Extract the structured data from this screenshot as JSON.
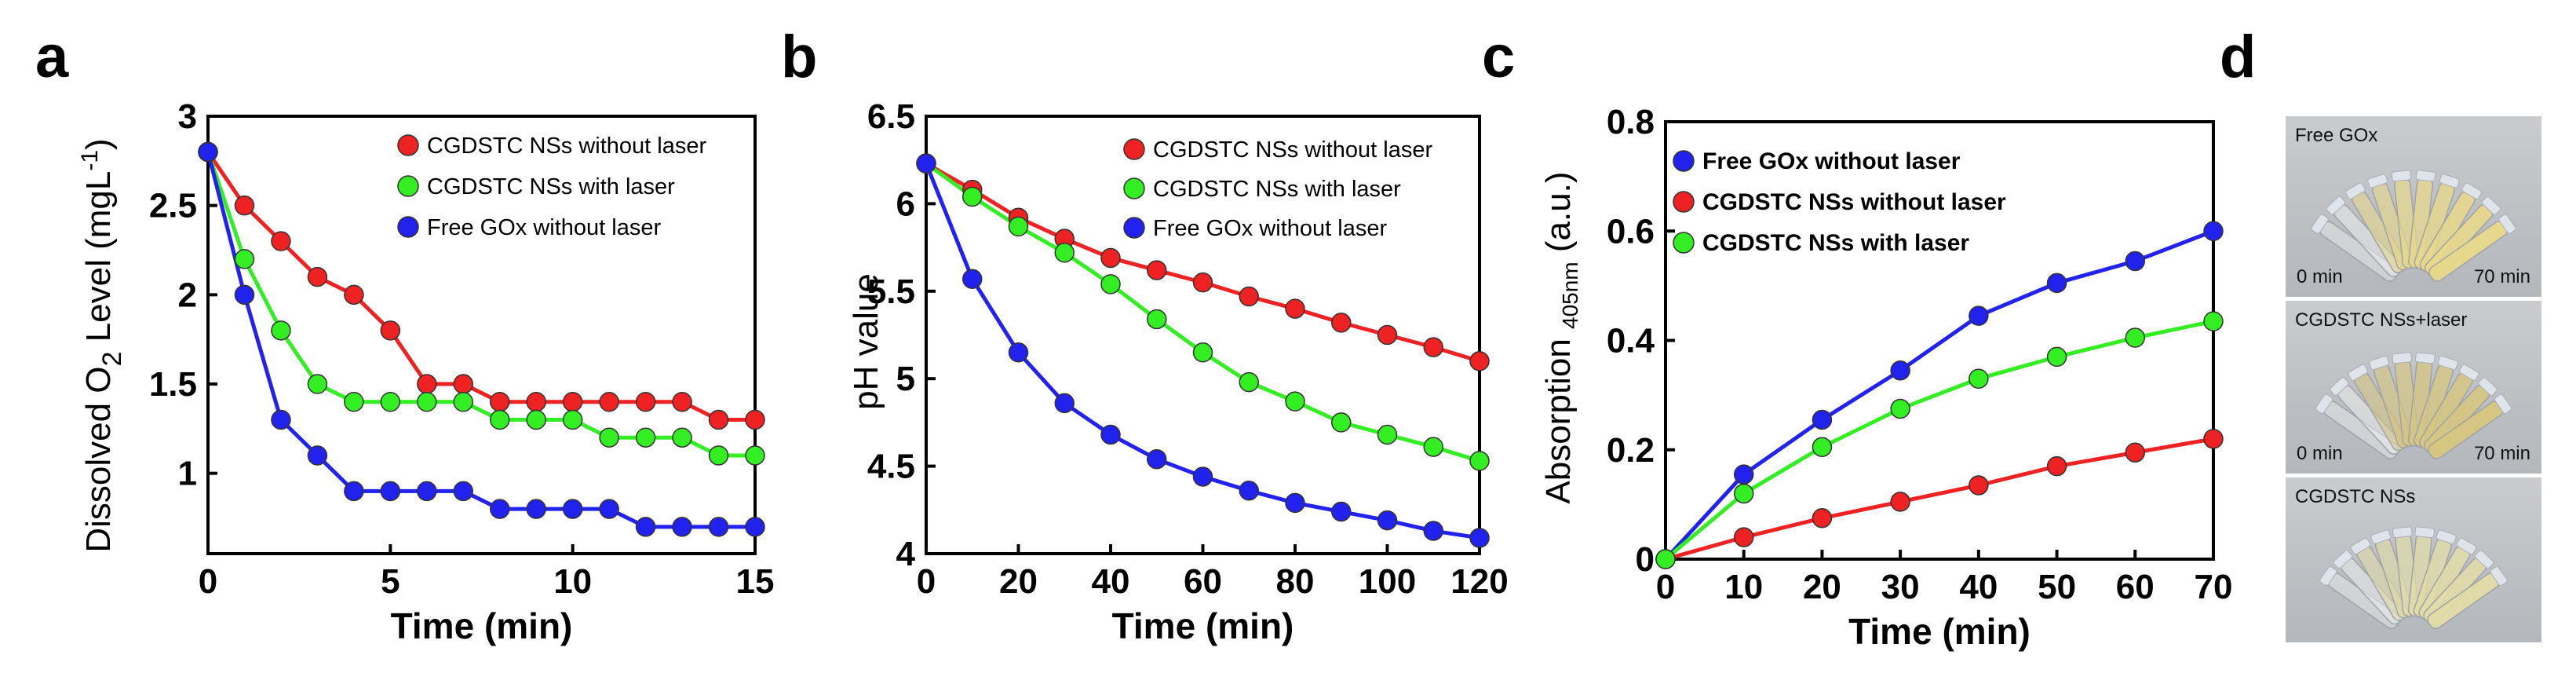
{
  "panels": {
    "a": {
      "letter": "a",
      "chart_data": {
        "type": "line",
        "xlabel": "Time (min)",
        "ylabel": {
          "main": "Dissolved O",
          "sub": "2",
          "rest": " Level (mgL",
          "sup": "-1",
          "close": ")"
        },
        "xlim": [
          0,
          15
        ],
        "ylim": [
          0.55,
          3.0
        ],
        "xticks": [
          0,
          5,
          10,
          15
        ],
        "xtick_labels": [
          "0",
          "5",
          "10",
          "15"
        ],
        "yticks": [
          1,
          1.5,
          2,
          2.5,
          3
        ],
        "ytick_labels": [
          "1",
          "1.5",
          "2",
          "2.5",
          "3"
        ],
        "x": [
          0,
          1,
          2,
          3,
          4,
          5,
          6,
          7,
          8,
          9,
          10,
          11,
          12,
          13,
          14,
          15
        ],
        "series": [
          {
            "name": "CGDSTC NSs without laser",
            "color": "#ee2222",
            "values": [
              2.8,
              2.5,
              2.3,
              2.1,
              2.0,
              1.8,
              1.5,
              1.5,
              1.4,
              1.4,
              1.4,
              1.4,
              1.4,
              1.4,
              1.3,
              1.3
            ]
          },
          {
            "name": "CGDSTC NSs with laser",
            "color": "#33ee22",
            "values": [
              2.8,
              2.2,
              1.8,
              1.5,
              1.4,
              1.4,
              1.4,
              1.4,
              1.3,
              1.3,
              1.3,
              1.2,
              1.2,
              1.2,
              1.1,
              1.1
            ]
          },
          {
            "name": "Free GOx without laser",
            "color": "#2222ee",
            "values": [
              2.8,
              2.0,
              1.3,
              1.1,
              0.9,
              0.9,
              0.9,
              0.9,
              0.8,
              0.8,
              0.8,
              0.8,
              0.7,
              0.7,
              0.7,
              0.7
            ]
          }
        ],
        "legend": "top-right"
      }
    },
    "b": {
      "letter": "b",
      "chart_data": {
        "type": "line",
        "xlabel": "Time (min)",
        "ylabel": "pH value",
        "xlim": [
          0,
          120
        ],
        "ylim": [
          4.0,
          6.5
        ],
        "xticks": [
          0,
          20,
          40,
          60,
          80,
          100,
          120
        ],
        "xtick_labels": [
          "0",
          "20",
          "40",
          "60",
          "80",
          "100",
          "120"
        ],
        "yticks": [
          4,
          4.5,
          5,
          5.5,
          6,
          6.5
        ],
        "ytick_labels": [
          "4",
          "4.5",
          "5",
          "5.5",
          "6",
          "6.5"
        ],
        "x": [
          0,
          10,
          20,
          30,
          40,
          50,
          60,
          70,
          80,
          90,
          100,
          110,
          120
        ],
        "series": [
          {
            "name": "CGDSTC NSs without laser",
            "color": "#ee2222",
            "values": [
              6.23,
              6.08,
              5.92,
              5.8,
              5.69,
              5.62,
              5.55,
              5.47,
              5.4,
              5.32,
              5.25,
              5.18,
              5.1
            ]
          },
          {
            "name": "CGDSTC NSs with laser",
            "color": "#33ee22",
            "values": [
              6.23,
              6.04,
              5.87,
              5.72,
              5.54,
              5.34,
              5.15,
              4.98,
              4.87,
              4.75,
              4.68,
              4.61,
              4.53
            ]
          },
          {
            "name": "Free GOx without laser",
            "color": "#2222ee",
            "values": [
              6.23,
              5.57,
              5.15,
              4.86,
              4.68,
              4.54,
              4.44,
              4.36,
              4.29,
              4.24,
              4.19,
              4.13,
              4.09
            ]
          }
        ],
        "legend": "top-right"
      }
    },
    "c": {
      "letter": "c",
      "chart_data": {
        "type": "line",
        "xlabel": "Time (min)",
        "ylabel": {
          "main": "Absorption ",
          "sub": "405nm",
          "rest": " (a.u.)"
        },
        "xlim": [
          0,
          70
        ],
        "ylim": [
          0,
          0.8
        ],
        "xticks": [
          0,
          10,
          20,
          30,
          40,
          50,
          60,
          70
        ],
        "xtick_labels": [
          "0",
          "10",
          "20",
          "30",
          "40",
          "50",
          "60",
          "70"
        ],
        "yticks": [
          0,
          0.2,
          0.4,
          0.6,
          0.8
        ],
        "ytick_labels": [
          "0",
          "0.2",
          "0.4",
          "0.6",
          "0.8"
        ],
        "x": [
          0,
          10,
          20,
          30,
          40,
          50,
          60,
          70
        ],
        "series": [
          {
            "name": "Free GOx without laser",
            "color": "#2222ee",
            "values": [
              0,
              0.155,
              0.255,
              0.345,
              0.445,
              0.505,
              0.545,
              0.6
            ]
          },
          {
            "name": "CGDSTC NSs  without laser",
            "color": "#ee2222",
            "values": [
              0,
              0.04,
              0.075,
              0.105,
              0.135,
              0.17,
              0.195,
              0.22
            ]
          },
          {
            "name": "CGDSTC NSs  with laser",
            "color": "#33ee22",
            "values": [
              0,
              0.12,
              0.205,
              0.275,
              0.33,
              0.37,
              0.405,
              0.435
            ]
          }
        ],
        "legend": "top-left"
      }
    },
    "d": {
      "letter": "d",
      "photos": [
        {
          "label": "Free GOx",
          "start": "0 min",
          "end": "70 min",
          "tint": "#e8d98a"
        },
        {
          "label": "CGDSTC NSs+laser",
          "start": "0 min",
          "end": "70 min",
          "tint": "#d6c680"
        },
        {
          "label": "CGDSTC NSs",
          "start": "",
          "end": "",
          "tint": "#e2dca8"
        }
      ]
    }
  }
}
